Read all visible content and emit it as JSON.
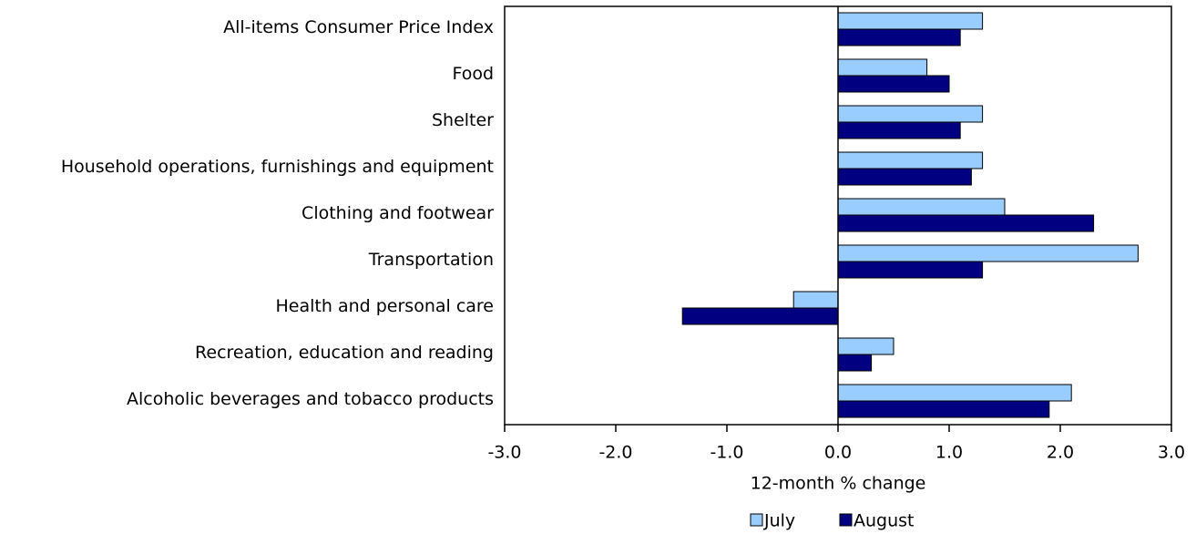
{
  "chart_data": {
    "type": "hbar",
    "categories": [
      "All-items Consumer Price Index",
      "Food",
      "Shelter",
      "Household operations, furnishings and equipment",
      "Clothing and footwear",
      "Transportation",
      "Health and personal care",
      "Recreation, education and reading",
      "Alcoholic beverages and tobacco products"
    ],
    "series": [
      {
        "name": "July",
        "color": "#99ccff",
        "values": [
          1.3,
          0.8,
          1.3,
          1.3,
          1.5,
          2.7,
          -0.4,
          0.5,
          2.1
        ]
      },
      {
        "name": "August",
        "color": "#000080",
        "values": [
          1.1,
          1.0,
          1.1,
          1.2,
          2.3,
          1.3,
          -1.4,
          0.3,
          1.9
        ]
      }
    ],
    "x_label": "12-month % change",
    "xlim": [
      -3,
      3
    ],
    "xticks": [
      {
        "value": -3,
        "label": "-3.0"
      },
      {
        "value": -2,
        "label": "-2.0"
      },
      {
        "value": -1,
        "label": "-1.0"
      },
      {
        "value": 0,
        "label": "0.0"
      },
      {
        "value": 1,
        "label": "1.0"
      },
      {
        "value": 2,
        "label": "2.0"
      },
      {
        "value": 3,
        "label": "3.0"
      }
    ],
    "legend": "bottom"
  }
}
